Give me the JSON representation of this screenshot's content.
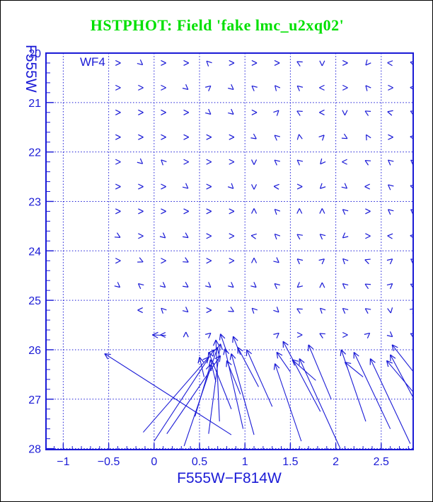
{
  "title": "HSTPHOT: Field 'fake lmc_u2xq02'",
  "colors": {
    "plot_blue": "#1a1ad6",
    "title_green": "#00e000",
    "background": "#ffffff",
    "outer_border": "#000000"
  },
  "chart_data": {
    "type": "quiver",
    "title": "HSTPHOT: Field 'fake lmc_u2xq02'",
    "xlabel": "F555W−F814W",
    "ylabel": "F555W",
    "panel_label": "WF4",
    "xlim": [
      -1.19,
      2.852
    ],
    "ylim": [
      20,
      28.02
    ],
    "grid_on": true,
    "x_major_ticks": {
      "values": [
        -1,
        -0.5,
        0,
        0.5,
        1,
        1.5,
        2,
        2.5
      ],
      "labels": [
        "−1",
        "−0.5",
        "0",
        "0.5",
        "1",
        "1.5",
        "2",
        "2.5"
      ]
    },
    "y_major_ticks": {
      "values": [
        20,
        21,
        22,
        23,
        24,
        25,
        26,
        27,
        28
      ],
      "labels": [
        "20",
        "21",
        "22",
        "23",
        "24",
        "25",
        "26",
        "27",
        "28"
      ]
    },
    "x_minor_step": 0.1,
    "y_minor_step": 0.2,
    "grid_x_values": [
      -1,
      -0.5,
      0,
      0.5,
      1,
      1.5,
      2,
      2.5
    ],
    "grid_y_values": [
      20,
      21,
      22,
      23,
      24,
      25,
      26,
      27,
      28
    ],
    "small_arrows": {
      "col_colors": [
        -0.4,
        -0.15,
        0.1,
        0.35,
        0.6,
        0.85,
        1.1,
        1.35,
        1.6,
        1.85,
        2.1,
        2.35,
        2.6,
        2.85
      ],
      "row_mags": [
        20.2,
        20.7,
        21.2,
        21.7,
        22.2,
        22.7,
        23.2,
        23.7,
        24.2,
        24.7,
        25.2,
        25.7
      ],
      "angles_deg": [
        [
          0,
          -40,
          0,
          0,
          135,
          0,
          0,
          0,
          150,
          -90,
          0,
          -130,
          175,
          160
        ],
        [
          0,
          0,
          0,
          -40,
          40,
          -40,
          140,
          130,
          140,
          180,
          0,
          130,
          0,
          175
        ],
        [
          0,
          0,
          0,
          0,
          -40,
          -40,
          0,
          45,
          150,
          180,
          -90,
          150,
          165,
          150
        ],
        [
          0,
          0,
          0,
          0,
          0,
          0,
          -35,
          140,
          100,
          45,
          -30,
          120,
          0,
          170
        ],
        [
          0,
          -40,
          135,
          0,
          0,
          0,
          -90,
          140,
          140,
          -130,
          180,
          150,
          140,
          140
        ],
        [
          0,
          0,
          0,
          -40,
          0,
          -45,
          -90,
          175,
          0,
          -135,
          -40,
          180,
          140,
          160
        ],
        [
          0,
          0,
          0,
          0,
          0,
          0,
          90,
          135,
          90,
          90,
          140,
          0,
          140,
          140
        ],
        [
          -30,
          0,
          -40,
          -35,
          0,
          0,
          170,
          135,
          145,
          140,
          -140,
          0,
          175,
          170
        ],
        [
          0,
          -25,
          0,
          -30,
          0,
          0,
          90,
          -40,
          140,
          40,
          135,
          160,
          40,
          140
        ],
        [
          -40,
          140,
          -40,
          -35,
          -40,
          -40,
          -40,
          140,
          -140,
          90,
          140,
          150,
          40,
          150
        ],
        [
          null,
          180,
          135,
          -40,
          0,
          -30,
          135,
          -45,
          150,
          135,
          140,
          145,
          -80,
          35
        ],
        [
          null,
          null,
          180,
          90,
          40,
          null,
          null,
          40,
          0,
          150,
          0,
          40,
          -40,
          150
        ]
      ]
    },
    "long_arrows": [
      [
        0.85,
        27.72,
        -0.545,
        26.08
      ],
      [
        -0.12,
        27.67,
        0.6,
        26.15
      ],
      [
        0.0,
        27.85,
        0.66,
        26.0
      ],
      [
        0.14,
        27.7,
        0.73,
        26.12
      ],
      [
        0.33,
        27.95,
        0.7,
        25.95
      ],
      [
        0.45,
        27.35,
        0.62,
        26.3
      ],
      [
        0.6,
        27.7,
        0.73,
        25.88
      ],
      [
        0.72,
        27.45,
        0.68,
        25.8
      ],
      [
        0.85,
        27.2,
        0.6,
        26.05
      ],
      [
        0.98,
        27.6,
        0.78,
        25.98
      ],
      [
        1.1,
        27.72,
        0.85,
        26.08
      ],
      [
        0.95,
        26.9,
        0.8,
        26.22
      ],
      [
        1.15,
        26.75,
        0.92,
        25.95
      ],
      [
        1.3,
        27.15,
        1.02,
        26.0
      ],
      [
        1.83,
        27.25,
        1.42,
        25.83
      ],
      [
        1.62,
        27.85,
        1.33,
        26.28
      ],
      [
        2.05,
        28.0,
        1.6,
        26.18
      ],
      [
        1.95,
        27.0,
        1.7,
        25.9
      ],
      [
        2.33,
        27.45,
        2.06,
        26.0
      ],
      [
        2.6,
        27.6,
        2.2,
        26.05
      ],
      [
        2.82,
        27.9,
        2.38,
        26.18
      ],
      [
        2.92,
        27.2,
        2.6,
        26.1
      ],
      [
        2.85,
        26.85,
        2.56,
        26.22
      ],
      [
        1.78,
        26.62,
        1.52,
        26.2
      ],
      [
        2.92,
        26.6,
        2.62,
        25.9
      ],
      [
        0.13,
        25.71,
        -0.02,
        25.7
      ],
      [
        0.8,
        26.05,
        0.73,
        25.68
      ],
      [
        0.95,
        26.1,
        0.87,
        25.73
      ],
      [
        1.5,
        26.45,
        1.35,
        26.05
      ],
      [
        2.3,
        26.55,
        2.1,
        26.25
      ],
      [
        0.55,
        26.55,
        0.5,
        26.15
      ],
      [
        0.68,
        26.65,
        0.62,
        26.2
      ]
    ]
  }
}
